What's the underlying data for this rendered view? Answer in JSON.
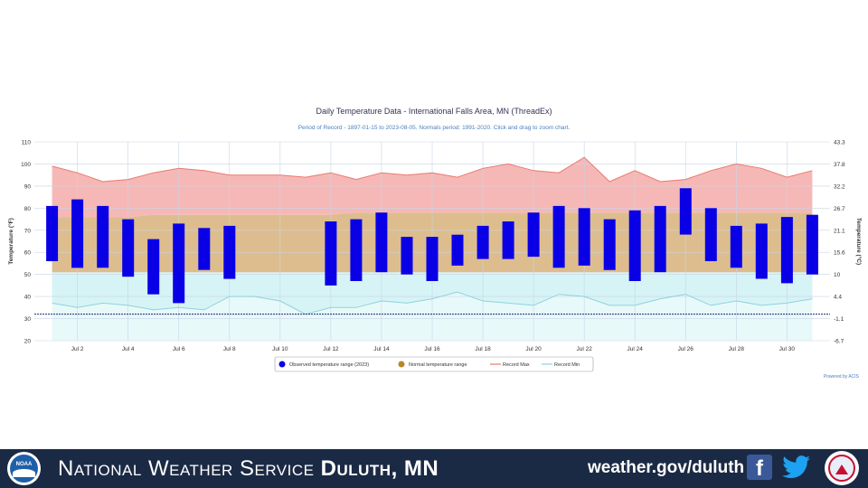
{
  "title": "Daily Temperature Data - International Falls Area, MN (ThreadEx)",
  "subtitle": "Period of Record - 1897-01-15 to 2023-08-05. Normals period: 1991-2020. Click and drag to zoom chart.",
  "powered_by": "Powered by ACIS",
  "footer": {
    "org_prefix": "National Weather Service ",
    "org_office": "Duluth, MN",
    "url": "weather.gov/duluth",
    "noaa_label": "NOAA"
  },
  "colors": {
    "observed": "#0a00e6",
    "normal": "#d7b27a",
    "record_max_fill": "#f5b0ae",
    "record_max_line": "#e87a70",
    "record_min_fill": "#d6f4f6",
    "record_min_line": "#8fd2dc",
    "footer_bg": "#1b2a44"
  },
  "chart_data": {
    "type": "bar",
    "x": [
      1,
      2,
      3,
      4,
      5,
      6,
      7,
      8,
      9,
      10,
      11,
      12,
      13,
      14,
      15,
      16,
      17,
      18,
      19,
      20,
      21,
      22,
      23,
      24,
      25,
      26,
      27,
      28,
      29,
      30,
      31
    ],
    "x_tick_labels": [
      "Jul 2",
      "Jul 4",
      "Jul 6",
      "Jul 8",
      "Jul 10",
      "Jul 12",
      "Jul 14",
      "Jul 16",
      "Jul 18",
      "Jul 20",
      "Jul 22",
      "Jul 24",
      "Jul 26",
      "Jul 28",
      "Jul 30"
    ],
    "x_tick_days": [
      2,
      4,
      6,
      8,
      10,
      12,
      14,
      16,
      18,
      20,
      22,
      24,
      26,
      28,
      30
    ],
    "xlim": [
      0.3,
      31.7
    ],
    "ylim": [
      20,
      110
    ],
    "y_ticks": [
      20,
      30,
      40,
      50,
      60,
      70,
      80,
      90,
      100,
      110
    ],
    "y_right_ticks": [
      "-6.7",
      "-1.1",
      "4.4",
      "10",
      "15.6",
      "21.1",
      "26.7",
      "32.2",
      "37.8",
      "43.3"
    ],
    "ylabel": "Temperature (°F)",
    "ylabel_right": "Temperature (°C)",
    "reference_line": 32,
    "grid": true,
    "legend_position": "bottom-center",
    "legend": [
      "Observed temperature range (2023)",
      "Normal temperature range",
      "Record Max",
      "Record Min"
    ],
    "observed": {
      "name": "Observed temperature range (2023)",
      "low": [
        56,
        53,
        53,
        49,
        41,
        37,
        52,
        48,
        null,
        null,
        null,
        45,
        47,
        51,
        50,
        47,
        54,
        57,
        57,
        58,
        53,
        54,
        52,
        47,
        51,
        68,
        56,
        53,
        48,
        46,
        50
      ],
      "high": [
        81,
        84,
        81,
        75,
        66,
        73,
        71,
        72,
        null,
        null,
        null,
        74,
        75,
        78,
        67,
        67,
        68,
        72,
        74,
        78,
        81,
        80,
        75,
        79,
        81,
        89,
        80,
        72,
        73,
        76,
        77
      ]
    },
    "normal": {
      "name": "Normal temperature range",
      "low": [
        51,
        51,
        51,
        51,
        51,
        51,
        51,
        51,
        51,
        51,
        51,
        51,
        51,
        51,
        51,
        51,
        51,
        51,
        51,
        51,
        51,
        51,
        51,
        51,
        51,
        51,
        51,
        51,
        51,
        51,
        51
      ],
      "high": [
        76,
        76,
        76,
        76,
        77,
        77,
        77,
        77,
        77,
        77,
        77,
        77,
        78,
        78,
        78,
        78,
        78,
        78,
        78,
        78,
        78,
        78,
        78,
        78,
        78,
        78,
        78,
        78,
        78,
        78,
        78
      ]
    },
    "record_max": {
      "name": "Record Max",
      "values": [
        99,
        96,
        92,
        93,
        96,
        98,
        97,
        95,
        95,
        95,
        94,
        96,
        93,
        96,
        95,
        96,
        94,
        98,
        100,
        97,
        96,
        103,
        92,
        97,
        92,
        93,
        97,
        100,
        98,
        94,
        97
      ]
    },
    "record_min": {
      "name": "Record Min",
      "values": [
        37,
        35,
        37,
        36,
        34,
        35,
        34,
        40,
        40,
        38,
        32,
        35,
        35,
        38,
        37,
        39,
        42,
        38,
        37,
        36,
        41,
        40,
        36,
        36,
        39,
        41,
        36,
        38,
        36,
        37,
        39
      ]
    }
  }
}
